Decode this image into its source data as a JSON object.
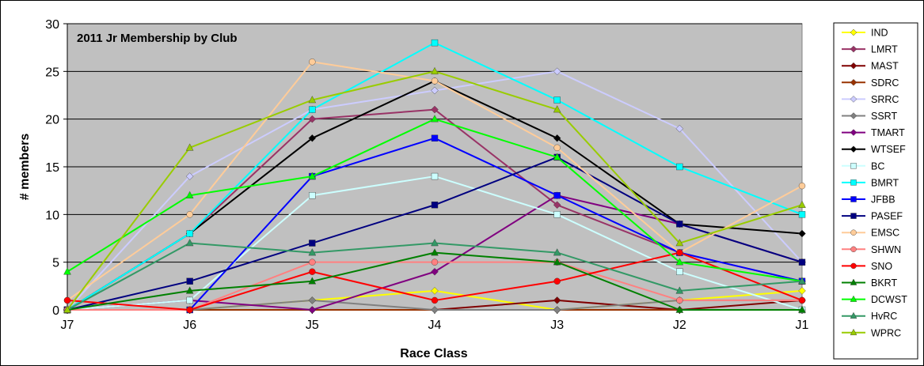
{
  "chart_data": {
    "type": "line",
    "title": "2011 Jr Membership by Club",
    "xlabel": "Race Class",
    "ylabel": "# members",
    "categories": [
      "J7",
      "J6",
      "J5",
      "J4",
      "J3",
      "J2",
      "J1"
    ],
    "ylim": [
      0,
      30
    ],
    "yticks": [
      0,
      5,
      10,
      15,
      20,
      25,
      30
    ],
    "grid": true,
    "legend_position": "right",
    "plot_background": "#c0c0c0",
    "series": [
      {
        "name": "IND",
        "color": "#ffff00",
        "marker": "diamond",
        "values": [
          0,
          0,
          1,
          2,
          0,
          1,
          2
        ]
      },
      {
        "name": "LMRT",
        "color": "#993366",
        "marker": "diamond",
        "values": [
          0,
          8,
          20,
          21,
          11,
          6,
          3
        ]
      },
      {
        "name": "MAST",
        "color": "#800000",
        "marker": "diamond",
        "values": [
          0,
          0,
          0,
          0,
          1,
          0,
          1
        ]
      },
      {
        "name": "SDRC",
        "color": "#993300",
        "marker": "diamond",
        "values": [
          0,
          0,
          0,
          0,
          0,
          0,
          0
        ]
      },
      {
        "name": "SRRC",
        "color": "#ccccff",
        "marker": "diamond",
        "values": [
          0,
          14,
          21,
          23,
          25,
          19,
          5
        ]
      },
      {
        "name": "SSRT",
        "color": "#808080",
        "marker": "diamond",
        "values": [
          0,
          0,
          1,
          0,
          0,
          1,
          1
        ]
      },
      {
        "name": "TMART",
        "color": "#800080",
        "marker": "diamond",
        "values": [
          0,
          1,
          0,
          4,
          12,
          9,
          5
        ]
      },
      {
        "name": "WTSEF",
        "color": "#000000",
        "marker": "diamond",
        "values": [
          0,
          8,
          18,
          24,
          18,
          9,
          8
        ]
      },
      {
        "name": "BC",
        "color": "#ccffff",
        "marker": "square",
        "values": [
          0,
          1,
          12,
          14,
          10,
          4,
          0
        ]
      },
      {
        "name": "BMRT",
        "color": "#00ffff",
        "marker": "square",
        "values": [
          0,
          8,
          21,
          28,
          22,
          15,
          10
        ]
      },
      {
        "name": "JFBB",
        "color": "#0000ff",
        "marker": "square",
        "values": [
          0,
          0,
          14,
          18,
          12,
          6,
          3
        ]
      },
      {
        "name": "PASEF",
        "color": "#000080",
        "marker": "square",
        "values": [
          0,
          3,
          7,
          11,
          16,
          9,
          5
        ]
      },
      {
        "name": "EMSC",
        "color": "#ffcc99",
        "marker": "circle",
        "values": [
          1,
          10,
          26,
          24,
          17,
          6,
          13
        ]
      },
      {
        "name": "SHWN",
        "color": "#ff8080",
        "marker": "circle",
        "values": [
          0,
          0,
          5,
          5,
          5,
          1,
          1
        ]
      },
      {
        "name": "SNO",
        "color": "#ff0000",
        "marker": "circle",
        "values": [
          1,
          0,
          4,
          1,
          3,
          6,
          1
        ]
      },
      {
        "name": "BKRT",
        "color": "#008000",
        "marker": "triangle",
        "values": [
          0,
          2,
          3,
          6,
          5,
          0,
          0
        ]
      },
      {
        "name": "DCWST",
        "color": "#00ff00",
        "marker": "triangle",
        "values": [
          4,
          12,
          14,
          20,
          16,
          5,
          3
        ]
      },
      {
        "name": "HvRC",
        "color": "#339966",
        "marker": "triangle",
        "values": [
          0,
          7,
          6,
          7,
          6,
          2,
          3
        ]
      },
      {
        "name": "WPRC",
        "color": "#99cc00",
        "marker": "triangle",
        "values": [
          0,
          17,
          22,
          25,
          21,
          7,
          11
        ]
      }
    ]
  }
}
